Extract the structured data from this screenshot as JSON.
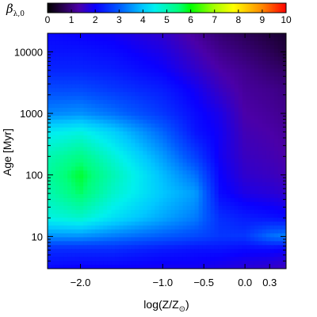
{
  "chart_data": {
    "type": "heatmap",
    "colorbar": {
      "label": "β",
      "label_subscript": "λ,0",
      "range": [
        0,
        10
      ],
      "ticks": [
        "0",
        "1",
        "2",
        "3",
        "4",
        "5",
        "6",
        "7",
        "8",
        "9",
        "10"
      ],
      "colormap": [
        [
          0.0,
          "#000000"
        ],
        [
          0.06,
          "#26004a"
        ],
        [
          0.13,
          "#4b00a8"
        ],
        [
          0.2,
          "#0a00ff"
        ],
        [
          0.3,
          "#005aff"
        ],
        [
          0.4,
          "#00c8ff"
        ],
        [
          0.45,
          "#00f0ee"
        ],
        [
          0.55,
          "#00ff7a"
        ],
        [
          0.6,
          "#00ff00"
        ],
        [
          0.7,
          "#a8ff00"
        ],
        [
          0.78,
          "#ffff00"
        ],
        [
          0.9,
          "#ff8800"
        ],
        [
          1.0,
          "#ff0000"
        ]
      ]
    },
    "x_axis": {
      "label_main": "log(Z/Z",
      "label_sub": "⊙",
      "label_close": ")",
      "range": [
        -2.4,
        0.5
      ],
      "ticks": [
        {
          "value": -2.0,
          "label": "−2.0"
        },
        {
          "value": -1.0,
          "label": "−1.0"
        },
        {
          "value": -0.5,
          "label": "−0.5"
        },
        {
          "value": 0.0,
          "label": "0.0"
        },
        {
          "value": 0.3,
          "label": "0.3"
        }
      ]
    },
    "y_axis": {
      "label": "Age [Myr]",
      "scale": "log",
      "range": [
        3,
        20000
      ],
      "ticks": [
        {
          "value": 10,
          "label": "10"
        },
        {
          "value": 100,
          "label": "100"
        },
        {
          "value": 1000,
          "label": "1000"
        },
        {
          "value": 10000,
          "label": "10000"
        }
      ]
    },
    "metallicity_nodes": [
      -2.4,
      -2.0,
      -1.6,
      -1.0,
      -0.6,
      -0.3,
      0.0,
      0.3,
      0.5
    ],
    "log_age_nodes": [
      0.5,
      0.8,
      1.0,
      1.3,
      1.7,
      2.0,
      2.3,
      2.7,
      3.0,
      3.4,
      3.7,
      4.0,
      4.3
    ],
    "values": [
      [
        2.1,
        2.0,
        2.0,
        1.9,
        1.9,
        1.8,
        1.7,
        1.6,
        1.5
      ],
      [
        2.5,
        2.5,
        2.5,
        2.3,
        2.2,
        2.2,
        2.1,
        2.1,
        2.0
      ],
      [
        3.5,
        3.5,
        3.3,
        3.0,
        2.8,
        2.6,
        2.6,
        3.2,
        3.4
      ],
      [
        4.6,
        4.8,
        4.3,
        3.7,
        3.3,
        2.5,
        2.3,
        2.2,
        2.1
      ],
      [
        5.0,
        5.6,
        4.8,
        4.0,
        3.6,
        2.1,
        1.8,
        1.7,
        1.6
      ],
      [
        5.2,
        5.8,
        5.0,
        3.9,
        3.2,
        2.0,
        1.6,
        1.5,
        1.4
      ],
      [
        5.0,
        5.4,
        4.7,
        3.6,
        2.7,
        1.9,
        1.5,
        1.4,
        1.3
      ],
      [
        4.4,
        4.6,
        4.1,
        3.1,
        2.2,
        1.9,
        1.4,
        1.3,
        1.2
      ],
      [
        3.4,
        3.5,
        3.2,
        2.6,
        2.1,
        1.8,
        1.3,
        1.2,
        1.1
      ],
      [
        2.8,
        2.8,
        2.6,
        2.3,
        1.9,
        1.5,
        1.2,
        1.1,
        1.0
      ],
      [
        2.4,
        2.4,
        2.3,
        2.0,
        1.6,
        1.3,
        1.1,
        0.9,
        0.8
      ],
      [
        2.2,
        2.2,
        2.1,
        1.8,
        1.4,
        1.1,
        0.9,
        0.7,
        0.5
      ],
      [
        2.1,
        2.0,
        1.9,
        1.6,
        1.2,
        0.9,
        0.7,
        0.5,
        0.4
      ]
    ]
  }
}
